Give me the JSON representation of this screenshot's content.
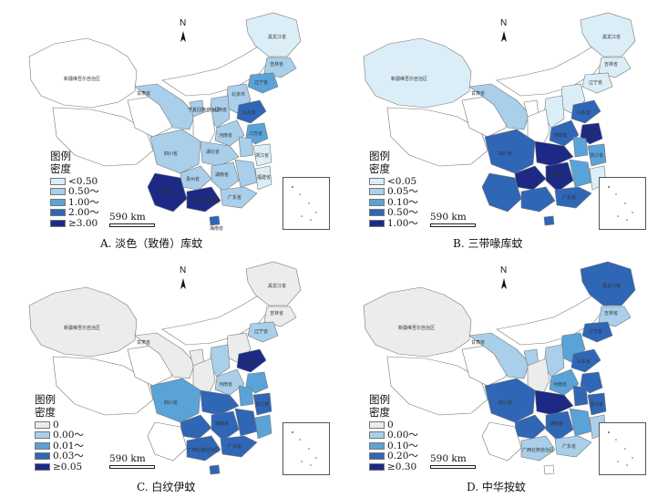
{
  "panels": [
    {
      "caption": "A. 淡色（致倦）库蚊",
      "legend_title_1": "图例",
      "legend_title_2": "密度",
      "legend": [
        {
          "label": "<0.50",
          "color": "#dbeef7"
        },
        {
          "label": "0.50～",
          "color": "#a9cfea"
        },
        {
          "label": "1.00～",
          "color": "#5aa3d8"
        },
        {
          "label": "2.00～",
          "color": "#2f66b6"
        },
        {
          "label": "≥3.00",
          "color": "#1c2a86"
        }
      ],
      "scale": "590 km",
      "north": "N",
      "labels": [
        "新疆维吾尔自治区",
        "黑龙江省",
        "吉林省",
        "辽宁省",
        "北京市",
        "山东省",
        "河南省",
        "湖北省",
        "湖南省",
        "四川省",
        "贵州省",
        "云南省",
        "广西壮族自治区",
        "广东省",
        "福建省",
        "浙江省",
        "江苏省",
        "宁夏回族自治区",
        "山西省",
        "甘肃省",
        "海南省"
      ]
    },
    {
      "caption": "B. 三带喙库蚊",
      "legend_title_1": "图例",
      "legend_title_2": "密度",
      "legend": [
        {
          "label": "<0.05",
          "color": "#dbeef7"
        },
        {
          "label": "0.05～",
          "color": "#a9cfea"
        },
        {
          "label": "0.10～",
          "color": "#5aa3d8"
        },
        {
          "label": "0.50～",
          "color": "#2f66b6"
        },
        {
          "label": "1.00～",
          "color": "#1c2a86"
        }
      ],
      "scale": "590 km",
      "north": "N",
      "labels": [
        "新疆维吾尔自治区",
        "黑龙江省",
        "吉林省",
        "辽宁省",
        "甘肃省",
        "山东省",
        "河南省",
        "四川省",
        "湖南省",
        "广东省",
        "浙江省",
        "江苏省"
      ]
    },
    {
      "caption": "C. 白纹伊蚊",
      "legend_title_1": "图例",
      "legend_title_2": "密度",
      "legend": [
        {
          "label": "0",
          "color": "#ececec"
        },
        {
          "label": "0.00～",
          "color": "#a9cfea"
        },
        {
          "label": "0.01～",
          "color": "#5aa3d8"
        },
        {
          "label": "0.03～",
          "color": "#2f66b6"
        },
        {
          "label": "≥0.05",
          "color": "#1c2a86"
        }
      ],
      "scale": "590 km",
      "north": "N",
      "labels": [
        "新疆维吾尔自治区",
        "黑龙江省",
        "吉林省",
        "辽宁省",
        "甘肃省",
        "山东省",
        "河南省",
        "四川省",
        "湖南省",
        "广西壮族自治区",
        "广东省",
        "浙江省"
      ]
    },
    {
      "caption": "D. 中华按蚊",
      "legend_title_1": "图例",
      "legend_title_2": "密度",
      "legend": [
        {
          "label": "0",
          "color": "#ececec"
        },
        {
          "label": "0.00～",
          "color": "#a9cfea"
        },
        {
          "label": "0.10～",
          "color": "#5aa3d8"
        },
        {
          "label": "0.20～",
          "color": "#2f66b6"
        },
        {
          "label": "≥0.30",
          "color": "#1c2a86"
        }
      ],
      "scale": "590 km",
      "north": "N",
      "labels": [
        "新疆维吾尔自治区",
        "黑龙江省",
        "吉林省",
        "辽宁省",
        "甘肃省",
        "山东省",
        "河南省",
        "四川省",
        "湖南省",
        "广西壮族自治区",
        "广东省",
        "浙江省"
      ]
    }
  ]
}
